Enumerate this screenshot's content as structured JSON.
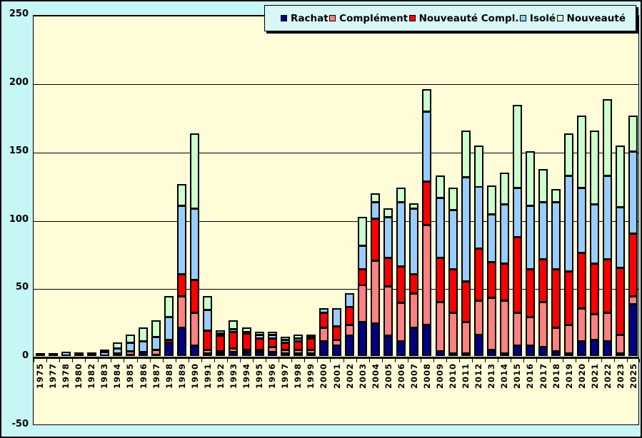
{
  "figure": {
    "background_color": "#c7f6f6",
    "plot_background_color": "#fffdd8",
    "border_color": "#000000"
  },
  "y_axis": {
    "tick_labels": [
      "250",
      "200",
      "150",
      "100",
      "50",
      "0",
      "-50"
    ],
    "tick_values": [
      250,
      200,
      150,
      100,
      50,
      0,
      -50
    ],
    "min": -50,
    "max": 250
  },
  "legend": {
    "position": "top-right",
    "items": [
      {
        "label": "Rachat",
        "color": "#000080"
      },
      {
        "label": "Complément",
        "color": "#ff8080"
      },
      {
        "label": "Nouveauté Compl.",
        "color": "#ff0000"
      },
      {
        "label": "Isolé",
        "color": "#99ccff"
      },
      {
        "label": "Nouveauté",
        "color": "#ccffcc"
      }
    ]
  },
  "chart_data": {
    "type": "bar",
    "stacked": true,
    "grid": true,
    "legend_position": "top-right",
    "ylim": [
      -50,
      250
    ],
    "categories": [
      "1975",
      "1977",
      "1978",
      "1980",
      "1982",
      "1983",
      "1984",
      "1985",
      "1986",
      "1987",
      "1988",
      "1989",
      "1990",
      "1991",
      "1992",
      "1993",
      "1994",
      "1995",
      "1996",
      "1997",
      "1998",
      "1999",
      "2000",
      "2001",
      "2002",
      "2003",
      "2004",
      "2005",
      "2006",
      "2007",
      "2008",
      "2009",
      "2010",
      "2011",
      "2012",
      "2013",
      "2014",
      "2015",
      "2016",
      "2017",
      "2018",
      "2019",
      "2020",
      "2021",
      "2022",
      "2023",
      "2025"
    ],
    "series": [
      {
        "name": "Rachat",
        "color": "#000080",
        "values": [
          1,
          1,
          0,
          1,
          1,
          0,
          2,
          1,
          3,
          1,
          10,
          21,
          8,
          2,
          2,
          3,
          3,
          3,
          3,
          2,
          2,
          2,
          11,
          8,
          15,
          25,
          24,
          15,
          11,
          21,
          23,
          4,
          2,
          2,
          16,
          5,
          2,
          8,
          8,
          7,
          4,
          2,
          11,
          12,
          11,
          2,
          38
        ]
      },
      {
        "name": "Complément",
        "color": "#ff8080",
        "values": [
          0,
          0,
          0,
          0,
          0,
          0,
          0,
          3,
          0,
          4,
          0,
          23,
          24,
          3,
          2,
          3,
          2,
          2,
          4,
          3,
          3,
          3,
          10,
          4,
          8,
          27,
          46,
          36,
          28,
          25,
          73,
          36,
          30,
          23,
          25,
          38,
          39,
          24,
          21,
          33,
          17,
          21,
          24,
          19,
          21,
          14,
          6
        ]
      },
      {
        "name": "Nouveauté Compl.",
        "color": "#ff0000",
        "values": [
          0,
          0,
          0,
          0,
          0,
          0,
          0,
          0,
          0,
          0,
          2,
          16,
          24,
          14,
          11,
          12,
          12,
          8,
          6,
          5,
          6,
          8,
          11,
          10,
          13,
          12,
          31,
          21,
          27,
          14,
          32,
          32,
          32,
          30,
          38,
          26,
          27,
          55,
          35,
          31,
          43,
          39,
          41,
          37,
          39,
          49,
          46
        ]
      },
      {
        "name": "Isolé",
        "color": "#99ccff",
        "values": [
          0,
          0,
          3,
          1,
          1,
          3,
          4,
          6,
          8,
          9,
          17,
          50,
          52,
          15,
          2,
          2,
          1,
          3,
          3,
          2,
          2,
          1,
          3,
          13,
          10,
          17,
          12,
          30,
          47,
          48,
          51,
          44,
          43,
          76,
          45,
          35,
          43,
          36,
          46,
          42,
          49,
          70,
          47,
          43,
          61,
          44,
          60
        ]
      },
      {
        "name": "Nouveauté",
        "color": "#ccffcc",
        "values": [
          0,
          0,
          0,
          0,
          0,
          2,
          4,
          6,
          10,
          12,
          15,
          16,
          55,
          10,
          2,
          6,
          3,
          2,
          2,
          2,
          3,
          2,
          0,
          0,
          0,
          21,
          6,
          6,
          10,
          4,
          16,
          16,
          16,
          34,
          30,
          21,
          23,
          61,
          40,
          24,
          9,
          31,
          53,
          54,
          56,
          45,
          26
        ]
      }
    ]
  }
}
